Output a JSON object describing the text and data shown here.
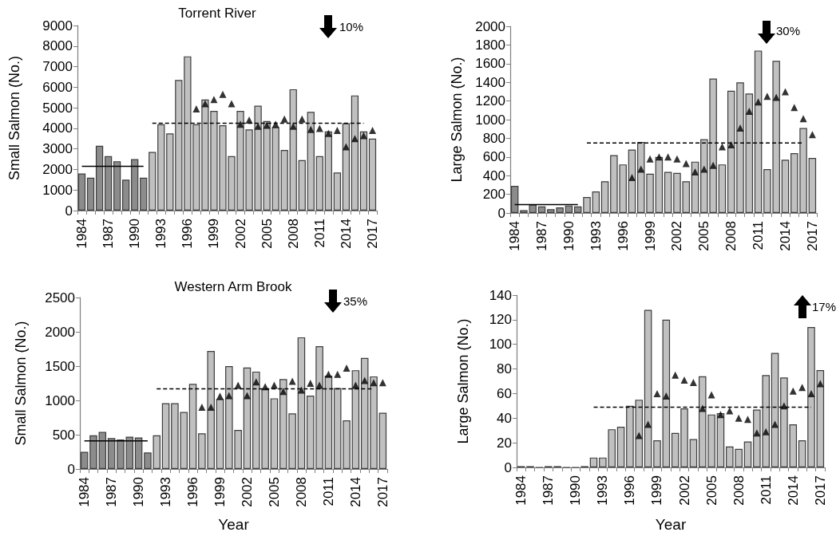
{
  "chart_data": [
    {
      "type": "bar",
      "title": "Torrent River",
      "ylabel": "Small Salmon (No.)",
      "annotations": [
        "10%"
      ],
      "categories": [
        "1984",
        null,
        null,
        "1987",
        null,
        null,
        "1990",
        null,
        null,
        "1993",
        null,
        null,
        "1996",
        null,
        null,
        "1999",
        null,
        null,
        "2002",
        null,
        null,
        "2005",
        null,
        null,
        "2008",
        null,
        null,
        "2011",
        null,
        null,
        "2014",
        null,
        null,
        "2017"
      ],
      "ylim": [
        0,
        9000
      ],
      "yticks": [
        0,
        1000,
        2000,
        3000,
        4000,
        5000,
        6000,
        7000,
        8000,
        9000
      ],
      "series": [
        {
          "type": "bar",
          "colors": [
            "#8c8c8c",
            "#8c8c8c",
            "#8c8c8c",
            "#8c8c8c",
            "#8c8c8c",
            "#8c8c8c",
            "#8c8c8c",
            "#8c8c8c",
            "#c0c0c0",
            "#c0c0c0",
            "#c0c0c0",
            "#c0c0c0",
            "#c0c0c0",
            "#c0c0c0",
            "#c0c0c0",
            "#c0c0c0",
            "#c0c0c0",
            "#c0c0c0",
            "#c0c0c0",
            "#c0c0c0",
            "#c0c0c0",
            "#c0c0c0",
            "#c0c0c0",
            "#c0c0c0",
            "#c0c0c0",
            "#c0c0c0",
            "#c0c0c0",
            "#c0c0c0",
            "#c0c0c0",
            "#c0c0c0",
            "#c0c0c0",
            "#c0c0c0",
            "#c0c0c0",
            "#c0c0c0"
          ],
          "values": [
            1800,
            1600,
            3150,
            2650,
            2400,
            1500,
            2500,
            1600,
            2850,
            4200,
            3750,
            6350,
            7500,
            4200,
            5400,
            4850,
            4150,
            2650,
            4850,
            3950,
            5100,
            4350,
            4050,
            2950,
            5900,
            2450,
            4800,
            2650,
            3850,
            1850,
            4250,
            5600,
            3850,
            3500
          ]
        },
        {
          "type": "scatter",
          "color": "#000000",
          "marker": "triangle",
          "values": [
            null,
            null,
            null,
            null,
            null,
            null,
            null,
            null,
            null,
            null,
            null,
            null,
            null,
            4950,
            5200,
            5400,
            5650,
            5200,
            4200,
            4400,
            4100,
            4150,
            4200,
            4450,
            4100,
            4450,
            3950,
            4000,
            3750,
            3900,
            3100,
            3500,
            3650,
            3900
          ]
        },
        {
          "type": "line",
          "color": "#000000",
          "marker": "none",
          "line_style": "solid",
          "values": [
            2150,
            2150,
            2150,
            2150,
            2150,
            2150,
            2150,
            2150,
            null,
            null,
            null,
            null,
            null,
            null,
            null,
            null,
            null,
            null,
            null,
            null,
            null,
            null,
            null,
            null,
            null,
            null,
            null,
            null,
            null,
            null,
            null,
            null,
            null,
            null
          ]
        },
        {
          "type": "line",
          "color": "#000000",
          "marker": "none",
          "line_style": "dashed",
          "values": [
            null,
            null,
            null,
            null,
            null,
            null,
            null,
            null,
            4250,
            4250,
            4250,
            4250,
            4250,
            4250,
            4250,
            4250,
            4250,
            4250,
            4250,
            4250,
            4250,
            4250,
            4250,
            4250,
            4250,
            4250,
            4250,
            4250,
            4250,
            4250,
            4250,
            4250,
            4250,
            null
          ]
        }
      ]
    },
    {
      "type": "bar",
      "ylabel": "Large Salmon (No.)",
      "annotations": [
        "30%"
      ],
      "categories": [
        "1984",
        null,
        null,
        "1987",
        null,
        null,
        "1990",
        null,
        null,
        "1993",
        null,
        null,
        "1996",
        null,
        null,
        "1999",
        null,
        null,
        "2002",
        null,
        null,
        "2005",
        null,
        null,
        "2008",
        null,
        null,
        "2011",
        null,
        null,
        "2014",
        null,
        null,
        "2017"
      ],
      "ylim": [
        0,
        2000
      ],
      "yticks": [
        0,
        200,
        400,
        600,
        800,
        1000,
        1200,
        1400,
        1600,
        1800,
        2000
      ],
      "series": [
        {
          "type": "bar",
          "colors": [
            "#8c8c8c",
            "#8c8c8c",
            "#8c8c8c",
            "#8c8c8c",
            "#8c8c8c",
            "#8c8c8c",
            "#8c8c8c",
            "#8c8c8c",
            "#c0c0c0",
            "#c0c0c0",
            "#c0c0c0",
            "#c0c0c0",
            "#c0c0c0",
            "#c0c0c0",
            "#c0c0c0",
            "#c0c0c0",
            "#c0c0c0",
            "#c0c0c0",
            "#c0c0c0",
            "#c0c0c0",
            "#c0c0c0",
            "#c0c0c0",
            "#c0c0c0",
            "#c0c0c0",
            "#c0c0c0",
            "#c0c0c0",
            "#c0c0c0",
            "#c0c0c0",
            "#c0c0c0",
            "#c0c0c0",
            "#c0c0c0",
            "#c0c0c0",
            "#c0c0c0",
            "#c0c0c0"
          ],
          "values": [
            290,
            30,
            90,
            70,
            40,
            60,
            80,
            70,
            170,
            230,
            340,
            620,
            520,
            680,
            760,
            420,
            600,
            440,
            430,
            340,
            550,
            790,
            1440,
            520,
            1310,
            1400,
            1280,
            1740,
            470,
            1630,
            570,
            640,
            910,
            590
          ]
        },
        {
          "type": "scatter",
          "color": "#000000",
          "marker": "triangle",
          "values": [
            null,
            null,
            null,
            null,
            null,
            null,
            null,
            null,
            null,
            null,
            null,
            null,
            null,
            380,
            470,
            580,
            600,
            600,
            580,
            530,
            440,
            470,
            510,
            710,
            730,
            910,
            1090,
            1190,
            1250,
            1240,
            1300,
            1130,
            1010,
            840
          ]
        },
        {
          "type": "line",
          "color": "#000000",
          "marker": "none",
          "line_style": "solid",
          "values": [
            90,
            90,
            90,
            90,
            90,
            90,
            90,
            90,
            null,
            null,
            null,
            null,
            null,
            null,
            null,
            null,
            null,
            null,
            null,
            null,
            null,
            null,
            null,
            null,
            null,
            null,
            null,
            null,
            null,
            null,
            null,
            null,
            null,
            null
          ]
        },
        {
          "type": "line",
          "color": "#000000",
          "marker": "none",
          "line_style": "dashed",
          "values": [
            null,
            null,
            null,
            null,
            null,
            null,
            null,
            null,
            750,
            750,
            750,
            750,
            750,
            750,
            750,
            750,
            750,
            750,
            750,
            750,
            750,
            750,
            750,
            750,
            750,
            750,
            750,
            750,
            750,
            750,
            750,
            750,
            750,
            null
          ]
        }
      ]
    },
    {
      "type": "bar",
      "title": "Western Arm Brook",
      "xlabel": "Year",
      "ylabel": "Small Salmon (No.)",
      "annotations": [
        "35%"
      ],
      "categories": [
        "1984",
        null,
        null,
        "1987",
        null,
        null,
        "1990",
        null,
        null,
        "1993",
        null,
        null,
        "1996",
        null,
        null,
        "1999",
        null,
        null,
        "2002",
        null,
        null,
        "2005",
        null,
        null,
        "2008",
        null,
        null,
        "2011",
        null,
        null,
        "2014",
        null,
        null,
        "2017"
      ],
      "ylim": [
        0,
        2500
      ],
      "yticks": [
        0,
        500,
        1000,
        1500,
        2000,
        2500
      ],
      "series": [
        {
          "type": "bar",
          "colors": [
            "#8c8c8c",
            "#8c8c8c",
            "#8c8c8c",
            "#8c8c8c",
            "#8c8c8c",
            "#8c8c8c",
            "#8c8c8c",
            "#8c8c8c",
            "#c0c0c0",
            "#c0c0c0",
            "#c0c0c0",
            "#c0c0c0",
            "#c0c0c0",
            "#c0c0c0",
            "#c0c0c0",
            "#c0c0c0",
            "#c0c0c0",
            "#c0c0c0",
            "#c0c0c0",
            "#c0c0c0",
            "#c0c0c0",
            "#c0c0c0",
            "#c0c0c0",
            "#c0c0c0",
            "#c0c0c0",
            "#c0c0c0",
            "#c0c0c0",
            "#c0c0c0",
            "#c0c0c0",
            "#c0c0c0",
            "#c0c0c0",
            "#c0c0c0",
            "#c0c0c0",
            "#c0c0c0"
          ],
          "values": [
            250,
            490,
            540,
            450,
            430,
            470,
            460,
            240,
            490,
            960,
            960,
            830,
            1240,
            520,
            1720,
            1020,
            1500,
            570,
            1480,
            1420,
            1170,
            1030,
            1310,
            810,
            1920,
            1070,
            1790,
            1360,
            1180,
            710,
            1440,
            1620,
            1350,
            820
          ]
        },
        {
          "type": "scatter",
          "color": "#000000",
          "marker": "triangle",
          "values": [
            null,
            null,
            null,
            null,
            null,
            null,
            null,
            null,
            null,
            null,
            null,
            null,
            null,
            900,
            900,
            1060,
            1070,
            1220,
            1070,
            1270,
            1200,
            1220,
            1130,
            1280,
            1150,
            1250,
            1220,
            1380,
            1380,
            1470,
            1220,
            1290,
            1260,
            1260
          ]
        },
        {
          "type": "line",
          "color": "#000000",
          "marker": "none",
          "line_style": "solid",
          "values": [
            410,
            410,
            410,
            410,
            410,
            410,
            410,
            410,
            null,
            null,
            null,
            null,
            null,
            null,
            null,
            null,
            null,
            null,
            null,
            null,
            null,
            null,
            null,
            null,
            null,
            null,
            null,
            null,
            null,
            null,
            null,
            null,
            null,
            null
          ]
        },
        {
          "type": "line",
          "color": "#000000",
          "marker": "none",
          "line_style": "dashed",
          "values": [
            null,
            null,
            null,
            null,
            null,
            null,
            null,
            null,
            1170,
            1170,
            1170,
            1170,
            1170,
            1170,
            1170,
            1170,
            1170,
            1170,
            1170,
            1170,
            1170,
            1170,
            1170,
            1170,
            1170,
            1170,
            1170,
            1170,
            1170,
            1170,
            1170,
            1170,
            1170,
            null
          ]
        }
      ]
    },
    {
      "type": "bar",
      "xlabel": "Year",
      "ylabel": "Large Salmon (No.)",
      "annotations": [
        "17%"
      ],
      "categories": [
        "1984",
        null,
        null,
        "1987",
        null,
        null,
        "1990",
        null,
        null,
        "1993",
        null,
        null,
        "1996",
        null,
        null,
        "1999",
        null,
        null,
        "2002",
        null,
        null,
        "2005",
        null,
        null,
        "2008",
        null,
        null,
        "2011",
        null,
        null,
        "2014",
        null,
        null,
        "2017"
      ],
      "ylim": [
        0,
        140
      ],
      "yticks": [
        0,
        20,
        40,
        60,
        80,
        100,
        120,
        140
      ],
      "series": [
        {
          "type": "bar",
          "colors": [
            "#8c8c8c",
            "#8c8c8c",
            "#3c3c3c",
            "#8c8c8c",
            "#8c8c8c",
            "#3c3c3c",
            "#3c3c3c",
            "#8c8c8c",
            "#c0c0c0",
            "#c0c0c0",
            "#c0c0c0",
            "#c0c0c0",
            "#c0c0c0",
            "#c0c0c0",
            "#c0c0c0",
            "#c0c0c0",
            "#c0c0c0",
            "#c0c0c0",
            "#c0c0c0",
            "#c0c0c0",
            "#c0c0c0",
            "#c0c0c0",
            "#c0c0c0",
            "#c0c0c0",
            "#c0c0c0",
            "#c0c0c0",
            "#c0c0c0",
            "#c0c0c0",
            "#c0c0c0",
            "#c0c0c0",
            "#c0c0c0",
            "#c0c0c0",
            "#c0c0c0",
            "#c0c0c0"
          ],
          "values": [
            1,
            1,
            0,
            1,
            1,
            0,
            0,
            1,
            8,
            8,
            31,
            33,
            50,
            55,
            128,
            22,
            120,
            28,
            48,
            23,
            74,
            43,
            44,
            17,
            15,
            21,
            47,
            75,
            93,
            73,
            35,
            22,
            114,
            79
          ]
        },
        {
          "type": "scatter",
          "color": "#000000",
          "marker": "triangle",
          "values": [
            null,
            null,
            null,
            null,
            null,
            null,
            null,
            null,
            null,
            null,
            null,
            null,
            null,
            26,
            35,
            60,
            58,
            75,
            71,
            69,
            48,
            59,
            43,
            46,
            40,
            39,
            28,
            29,
            35,
            50,
            62,
            65,
            60,
            68
          ]
        },
        {
          "type": "line",
          "color": "#000000",
          "marker": "none",
          "line_style": "dashed",
          "values": [
            null,
            null,
            null,
            null,
            null,
            null,
            null,
            null,
            49,
            49,
            49,
            49,
            49,
            49,
            49,
            49,
            49,
            49,
            49,
            49,
            49,
            49,
            49,
            49,
            49,
            49,
            49,
            49,
            49,
            49,
            49,
            49,
            49,
            null
          ]
        }
      ]
    }
  ]
}
